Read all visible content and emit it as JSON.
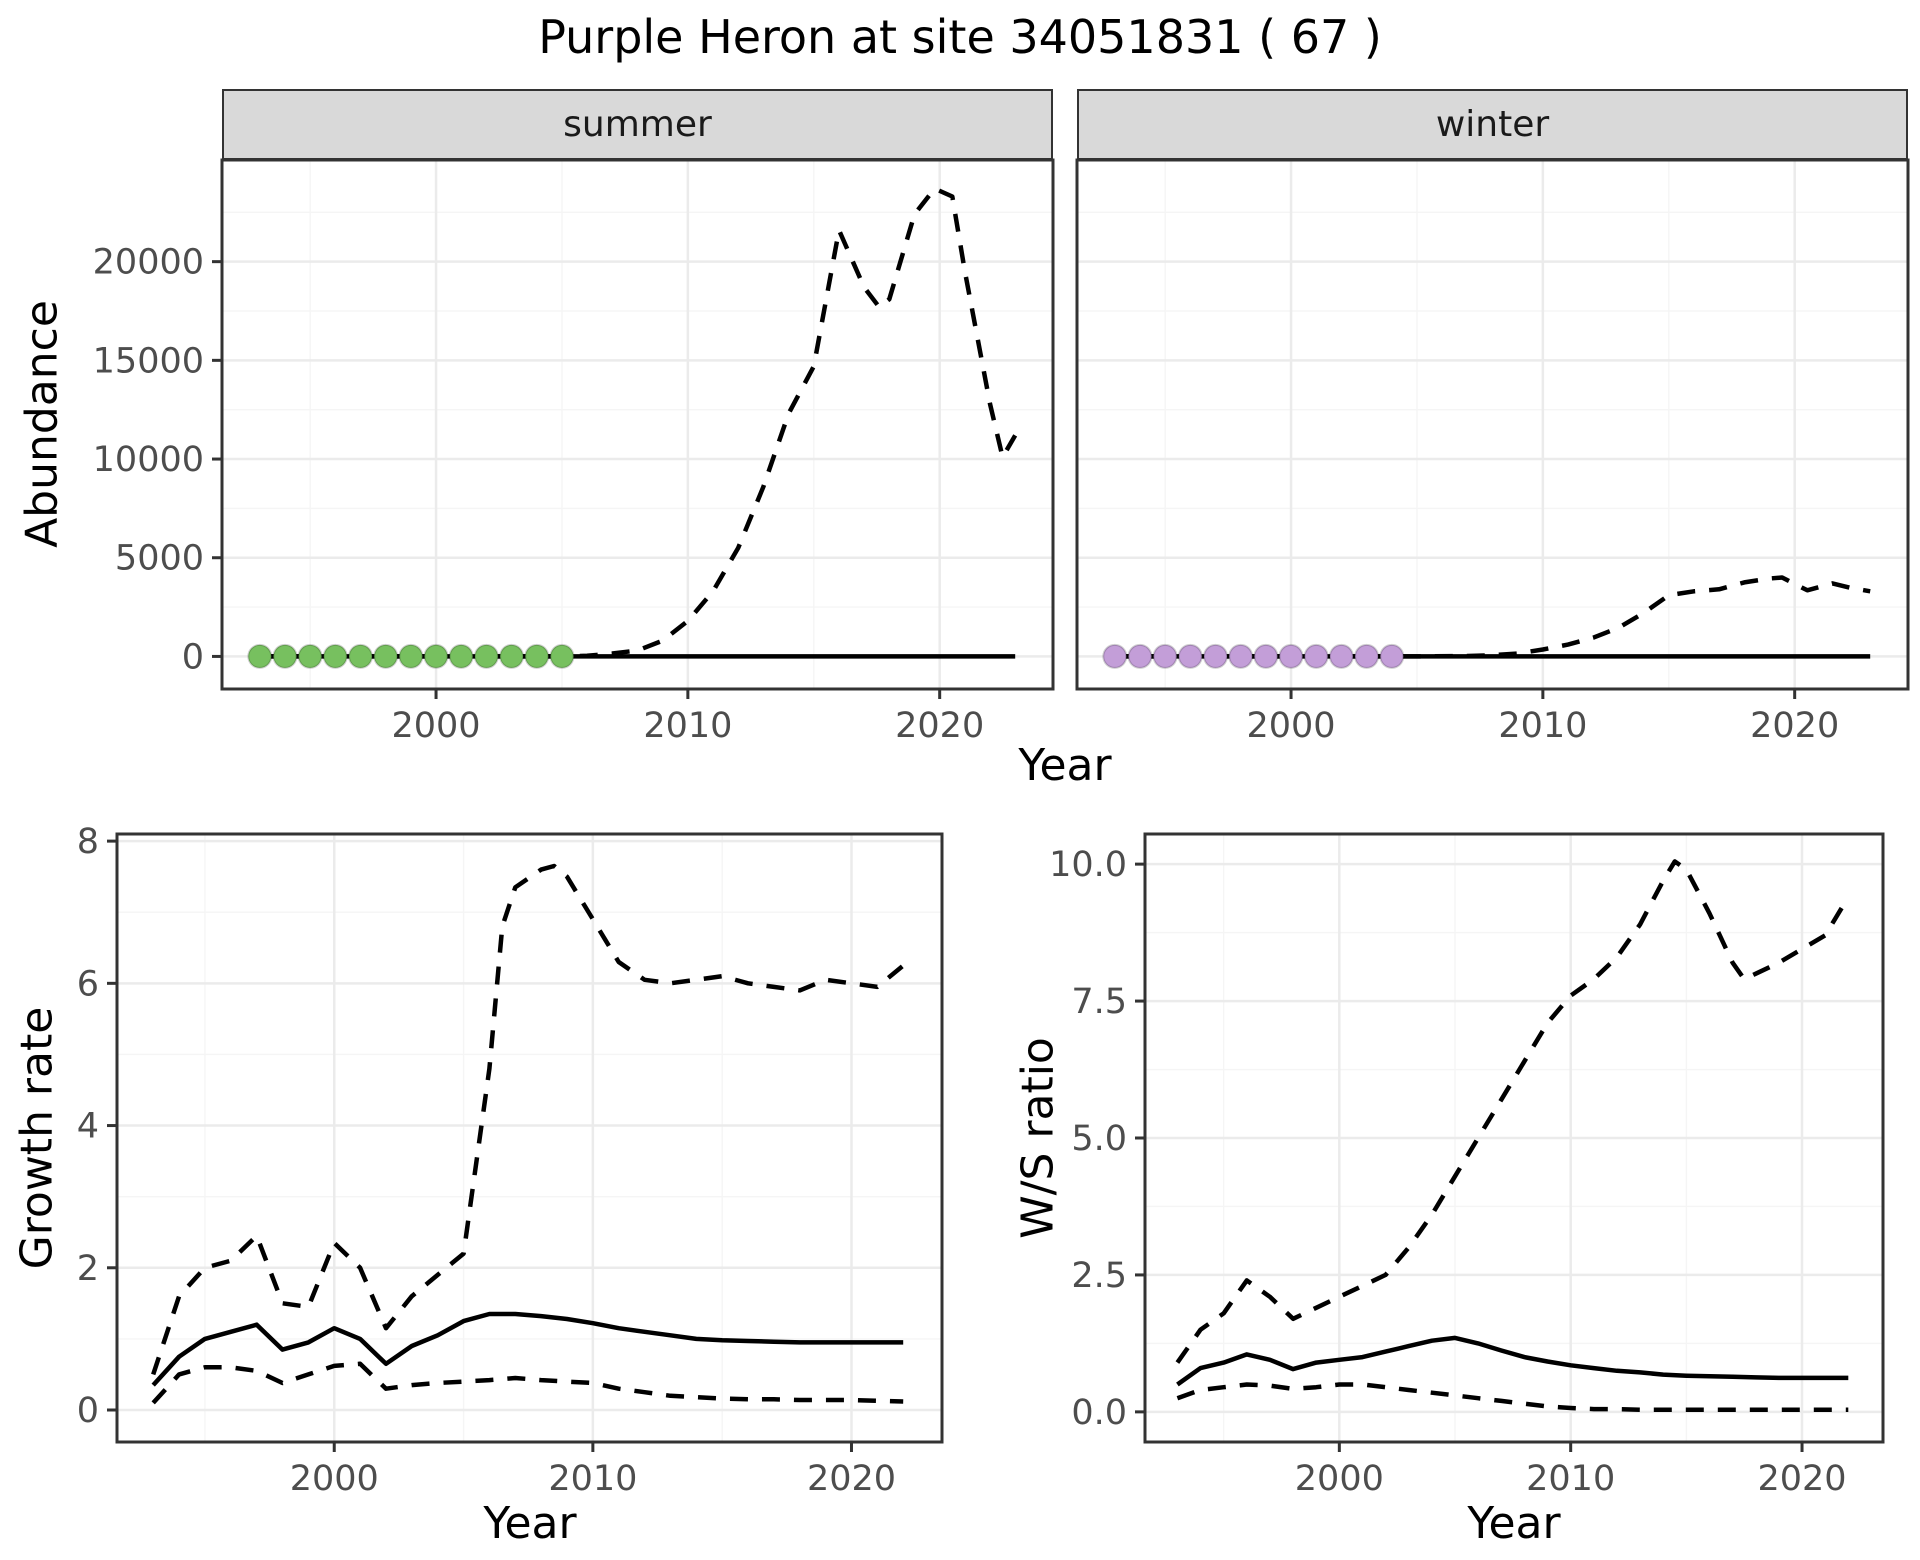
{
  "title": "Purple Heron at site 34051831 ( 67 )",
  "facets": [
    "summer",
    "winter"
  ],
  "colors": {
    "summer_points": "#77c05f",
    "winter_points": "#c39ed8",
    "series_line": "#000000",
    "strip_background": "#d9d9d9",
    "grid_major": "#ebebeb",
    "grid_minor": "#f5f5f5",
    "axis_text": "#4d4d4d",
    "panel_border": "#333333"
  },
  "chart_data": [
    {
      "id": "abundance-by-season",
      "type": "line",
      "xlabel": "Year",
      "ylabel": "Abundance",
      "xlim": [
        1991.5,
        2024.5
      ],
      "ylim": [
        -1650,
        25150
      ],
      "grid": true,
      "legend": "none",
      "xticks": {
        "values": [
          2000,
          2010,
          2020
        ],
        "labels": [
          "2000",
          "2010",
          "2020"
        ]
      },
      "yticks": {
        "values": [
          0,
          5000,
          10000,
          15000,
          20000
        ],
        "labels": [
          "0",
          "5000",
          "10000",
          "15000",
          "20000"
        ]
      },
      "panels": [
        {
          "facet": "summer",
          "series": [
            {
              "name": "fitted-abundance",
              "style": "solid",
              "x": [
                1993,
                2023
              ],
              "y": [
                0,
                0
              ]
            },
            {
              "name": "upper-confidence-limit",
              "style": "dashed",
              "x": [
                1993,
                1995,
                1997,
                1999,
                2001,
                2003,
                2005,
                2006,
                2007,
                2008,
                2009,
                2010,
                2011,
                2012,
                2013,
                2014,
                2015,
                2016,
                2017,
                2017.6,
                2018,
                2019,
                2019.8,
                2020.5,
                2021,
                2022,
                2022.5,
                2023
              ],
              "y": [
                0,
                0,
                0,
                0,
                0,
                0,
                0,
                30,
                150,
                300,
                800,
                1800,
                3300,
                5500,
                8600,
                12300,
                14700,
                21600,
                18700,
                17700,
                18100,
                22400,
                23700,
                23300,
                19500,
                12800,
                10100,
                11200
              ]
            }
          ],
          "points": {
            "name": "observed-counts",
            "color_key": "summer_points",
            "x": [
              1993,
              1994,
              1995,
              1996,
              1997,
              1998,
              1999,
              2000,
              2001,
              2002,
              2003,
              2004,
              2005
            ],
            "y": [
              0,
              0,
              0,
              0,
              0,
              0,
              0,
              0,
              0,
              0,
              0,
              0,
              0
            ]
          }
        },
        {
          "facet": "winter",
          "series": [
            {
              "name": "fitted-abundance",
              "style": "solid",
              "x": [
                1993,
                2023
              ],
              "y": [
                0,
                0
              ]
            },
            {
              "name": "upper-confidence-limit",
              "style": "dashed",
              "x": [
                1993,
                1996,
                1999,
                2002,
                2005,
                2007,
                2008,
                2009,
                2010,
                2011,
                2012,
                2013,
                2014,
                2015,
                2016,
                2017,
                2018,
                2019,
                2019.5,
                2020.5,
                2021.5,
                2022.3,
                2023
              ],
              "y": [
                0,
                0,
                0,
                0,
                0,
                20,
                60,
                150,
                350,
                600,
                950,
                1450,
                2200,
                3100,
                3300,
                3400,
                3750,
                3950,
                4000,
                3350,
                3700,
                3450,
                3300
              ]
            }
          ],
          "points": {
            "name": "observed-counts",
            "color_key": "winter_points",
            "x": [
              1993,
              1994,
              1995,
              1996,
              1997,
              1998,
              1999,
              2000,
              2001,
              2002,
              2003,
              2004
            ],
            "y": [
              0,
              0,
              0,
              0,
              0,
              0,
              0,
              0,
              0,
              0,
              0,
              0
            ]
          }
        }
      ]
    },
    {
      "id": "growth-rate",
      "type": "line",
      "xlabel": "Year",
      "ylabel": "Growth rate",
      "xlim": [
        1991.6,
        2023.5
      ],
      "ylim": [
        -0.45,
        8.1
      ],
      "grid": true,
      "legend": "none",
      "xticks": {
        "values": [
          2000,
          2010,
          2020
        ],
        "labels": [
          "2000",
          "2010",
          "2020"
        ]
      },
      "yticks": {
        "values": [
          0,
          2,
          4,
          6,
          8
        ],
        "labels": [
          "0",
          "2",
          "4",
          "6",
          "8"
        ]
      },
      "panels": [
        {
          "facet": null,
          "series": [
            {
              "name": "growth-rate-estimate",
              "style": "solid",
              "x": [
                1993,
                1994,
                1995,
                1996,
                1997,
                1998,
                1999,
                2000,
                2001,
                2002,
                2003,
                2004,
                2005,
                2006,
                2007,
                2008,
                2009,
                2010,
                2011,
                2012,
                2013,
                2014,
                2015,
                2016,
                2017,
                2018,
                2019,
                2020,
                2021,
                2022
              ],
              "y": [
                0.35,
                0.75,
                1.0,
                1.1,
                1.2,
                0.85,
                0.95,
                1.15,
                1.0,
                0.65,
                0.9,
                1.05,
                1.25,
                1.35,
                1.35,
                1.32,
                1.28,
                1.22,
                1.15,
                1.1,
                1.05,
                1.0,
                0.98,
                0.97,
                0.96,
                0.95,
                0.95,
                0.95,
                0.95,
                0.95
              ]
            },
            {
              "name": "upper-confidence-limit",
              "style": "dashed",
              "x": [
                1993,
                1994,
                1995,
                1996,
                1997,
                1998,
                1999,
                2000,
                2001,
                2002,
                2003,
                2004,
                2005,
                2006,
                2006.5,
                2007,
                2008,
                2008.5,
                2009,
                2010,
                2010.5,
                2011,
                2012,
                2013,
                2014,
                2015,
                2016,
                2017,
                2018,
                2019,
                2020,
                2021,
                2022
              ],
              "y": [
                0.5,
                1.6,
                2.0,
                2.1,
                2.45,
                1.5,
                1.45,
                2.35,
                2.0,
                1.15,
                1.6,
                1.9,
                2.2,
                4.8,
                6.8,
                7.35,
                7.6,
                7.65,
                7.5,
                6.9,
                6.6,
                6.3,
                6.05,
                6.0,
                6.05,
                6.1,
                6.0,
                5.95,
                5.9,
                6.05,
                6.0,
                5.95,
                6.25
              ]
            },
            {
              "name": "lower-confidence-limit",
              "style": "dashed",
              "x": [
                1993,
                1994,
                1995,
                1996,
                1997,
                1998,
                1999,
                2000,
                2001,
                2002,
                2003,
                2004,
                2005,
                2006,
                2007,
                2008,
                2009,
                2010,
                2011,
                2012,
                2013,
                2014,
                2015,
                2016,
                2017,
                2018,
                2019,
                2020,
                2021,
                2022
              ],
              "y": [
                0.1,
                0.5,
                0.6,
                0.6,
                0.55,
                0.38,
                0.5,
                0.62,
                0.65,
                0.3,
                0.35,
                0.38,
                0.4,
                0.42,
                0.45,
                0.42,
                0.4,
                0.38,
                0.3,
                0.25,
                0.2,
                0.18,
                0.16,
                0.15,
                0.15,
                0.14,
                0.14,
                0.14,
                0.13,
                0.12
              ]
            }
          ]
        }
      ]
    },
    {
      "id": "winter-summer-ratio",
      "type": "line",
      "xlabel": "Year",
      "ylabel": "W/S ratio",
      "xlim": [
        1991.6,
        2023.5
      ],
      "ylim": [
        -0.55,
        10.55
      ],
      "grid": true,
      "legend": "none",
      "xticks": {
        "values": [
          2000,
          2010,
          2020
        ],
        "labels": [
          "2000",
          "2010",
          "2020"
        ]
      },
      "yticks": {
        "values": [
          0,
          2.5,
          5,
          7.5,
          10
        ],
        "labels": [
          "0.0",
          "2.5",
          "5.0",
          "7.5",
          "10.0"
        ]
      },
      "panels": [
        {
          "facet": null,
          "series": [
            {
              "name": "ws-ratio-estimate",
              "style": "solid",
              "x": [
                1993,
                1994,
                1995,
                1996,
                1997,
                1998,
                1999,
                2000,
                2001,
                2002,
                2003,
                2004,
                2005,
                2006,
                2007,
                2008,
                2009,
                2010,
                2011,
                2012,
                2013,
                2014,
                2015,
                2016,
                2017,
                2018,
                2019,
                2020,
                2021,
                2022
              ],
              "y": [
                0.5,
                0.8,
                0.9,
                1.05,
                0.95,
                0.78,
                0.9,
                0.95,
                1.0,
                1.1,
                1.2,
                1.3,
                1.35,
                1.25,
                1.12,
                1.0,
                0.92,
                0.85,
                0.8,
                0.75,
                0.72,
                0.68,
                0.66,
                0.65,
                0.64,
                0.63,
                0.62,
                0.62,
                0.62,
                0.62
              ]
            },
            {
              "name": "upper-confidence-limit",
              "style": "dashed",
              "x": [
                1993,
                1994,
                1995,
                1996,
                1997,
                1998,
                1999,
                2000,
                2001,
                2002,
                2003,
                2004,
                2005,
                2006,
                2007,
                2008,
                2009,
                2010,
                2011,
                2012,
                2013,
                2014,
                2014.5,
                2015,
                2016,
                2017,
                2017.5,
                2018,
                2019,
                2020,
                2021,
                2022
              ],
              "y": [
                0.9,
                1.5,
                1.8,
                2.4,
                2.1,
                1.7,
                1.9,
                2.1,
                2.3,
                2.5,
                3.0,
                3.6,
                4.3,
                5.0,
                5.7,
                6.4,
                7.1,
                7.6,
                7.9,
                8.3,
                8.9,
                9.7,
                10.05,
                9.9,
                9.1,
                8.2,
                7.9,
                8.0,
                8.2,
                8.45,
                8.7,
                9.4
              ]
            },
            {
              "name": "lower-confidence-limit",
              "style": "dashed",
              "x": [
                1993,
                1994,
                1995,
                1996,
                1997,
                1998,
                1999,
                2000,
                2001,
                2002,
                2003,
                2004,
                2005,
                2006,
                2007,
                2008,
                2009,
                2010,
                2011,
                2012,
                2013,
                2014,
                2015,
                2016,
                2017,
                2018,
                2019,
                2020,
                2021,
                2022
              ],
              "y": [
                0.25,
                0.4,
                0.45,
                0.5,
                0.48,
                0.42,
                0.45,
                0.5,
                0.5,
                0.45,
                0.4,
                0.35,
                0.3,
                0.25,
                0.2,
                0.15,
                0.1,
                0.07,
                0.05,
                0.05,
                0.04,
                0.04,
                0.04,
                0.04,
                0.04,
                0.04,
                0.04,
                0.04,
                0.04,
                0.04
              ]
            }
          ]
        }
      ]
    }
  ]
}
